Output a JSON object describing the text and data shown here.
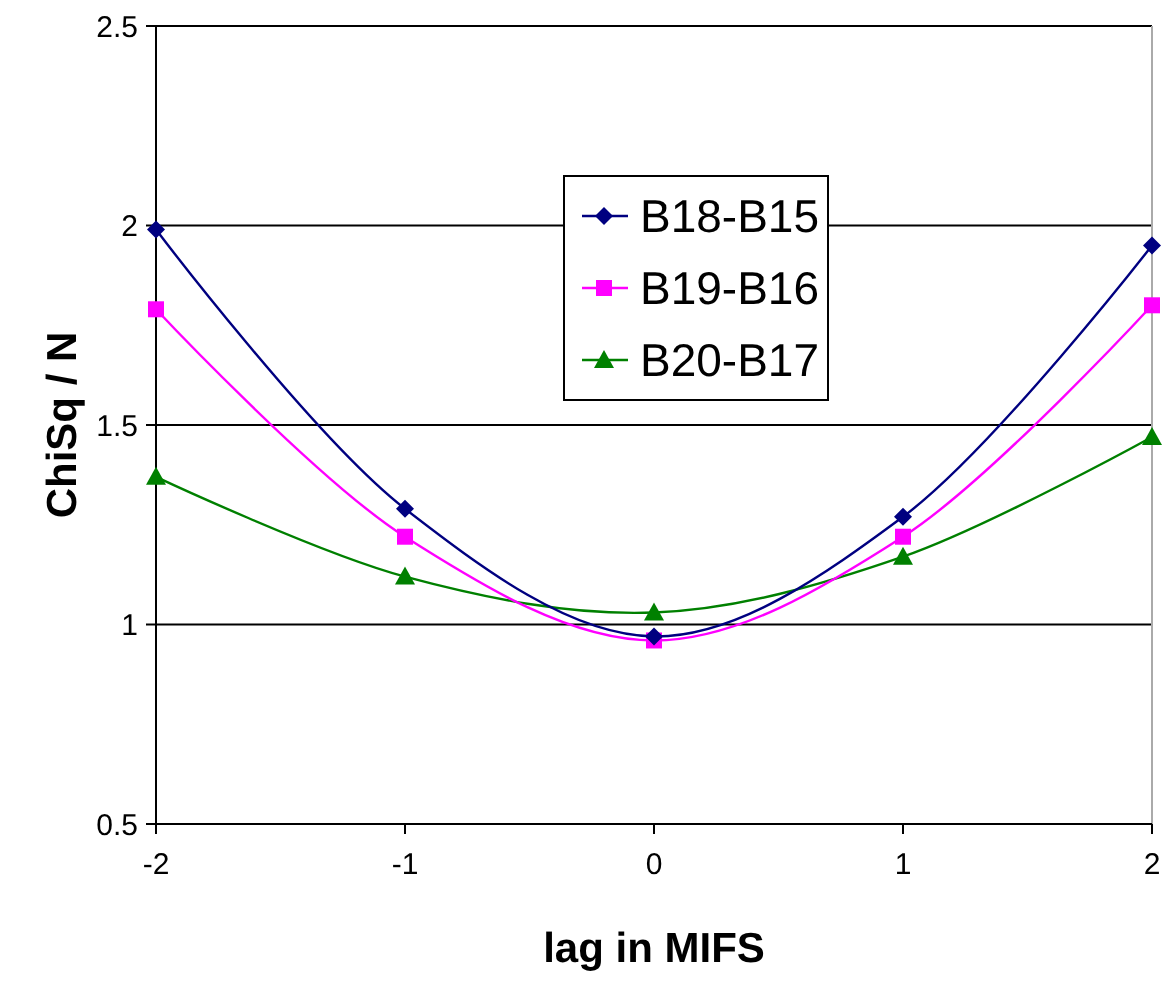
{
  "chart_data": {
    "type": "line",
    "xlabel": "lag in MIFS",
    "ylabel": "ChiSq / N",
    "x": [
      -2,
      -1,
      0,
      1,
      2
    ],
    "series": [
      {
        "name": "B18-B15",
        "color": "#000080",
        "marker": "diamond",
        "values": [
          1.99,
          1.29,
          0.97,
          1.27,
          1.95
        ]
      },
      {
        "name": "B19-B16",
        "color": "#ff00ff",
        "marker": "square",
        "values": [
          1.79,
          1.22,
          0.96,
          1.22,
          1.8
        ]
      },
      {
        "name": "B20-B17",
        "color": "#008000",
        "marker": "triangle",
        "values": [
          1.37,
          1.12,
          1.03,
          1.17,
          1.47
        ]
      }
    ],
    "xlim": [
      -2,
      2
    ],
    "xticks": [
      -2,
      -1,
      0,
      1,
      2
    ],
    "ylim": [
      0.5,
      2.5
    ],
    "yticks": [
      0.5,
      1,
      1.5,
      2,
      2.5
    ],
    "grid": "y",
    "legend": "top"
  }
}
